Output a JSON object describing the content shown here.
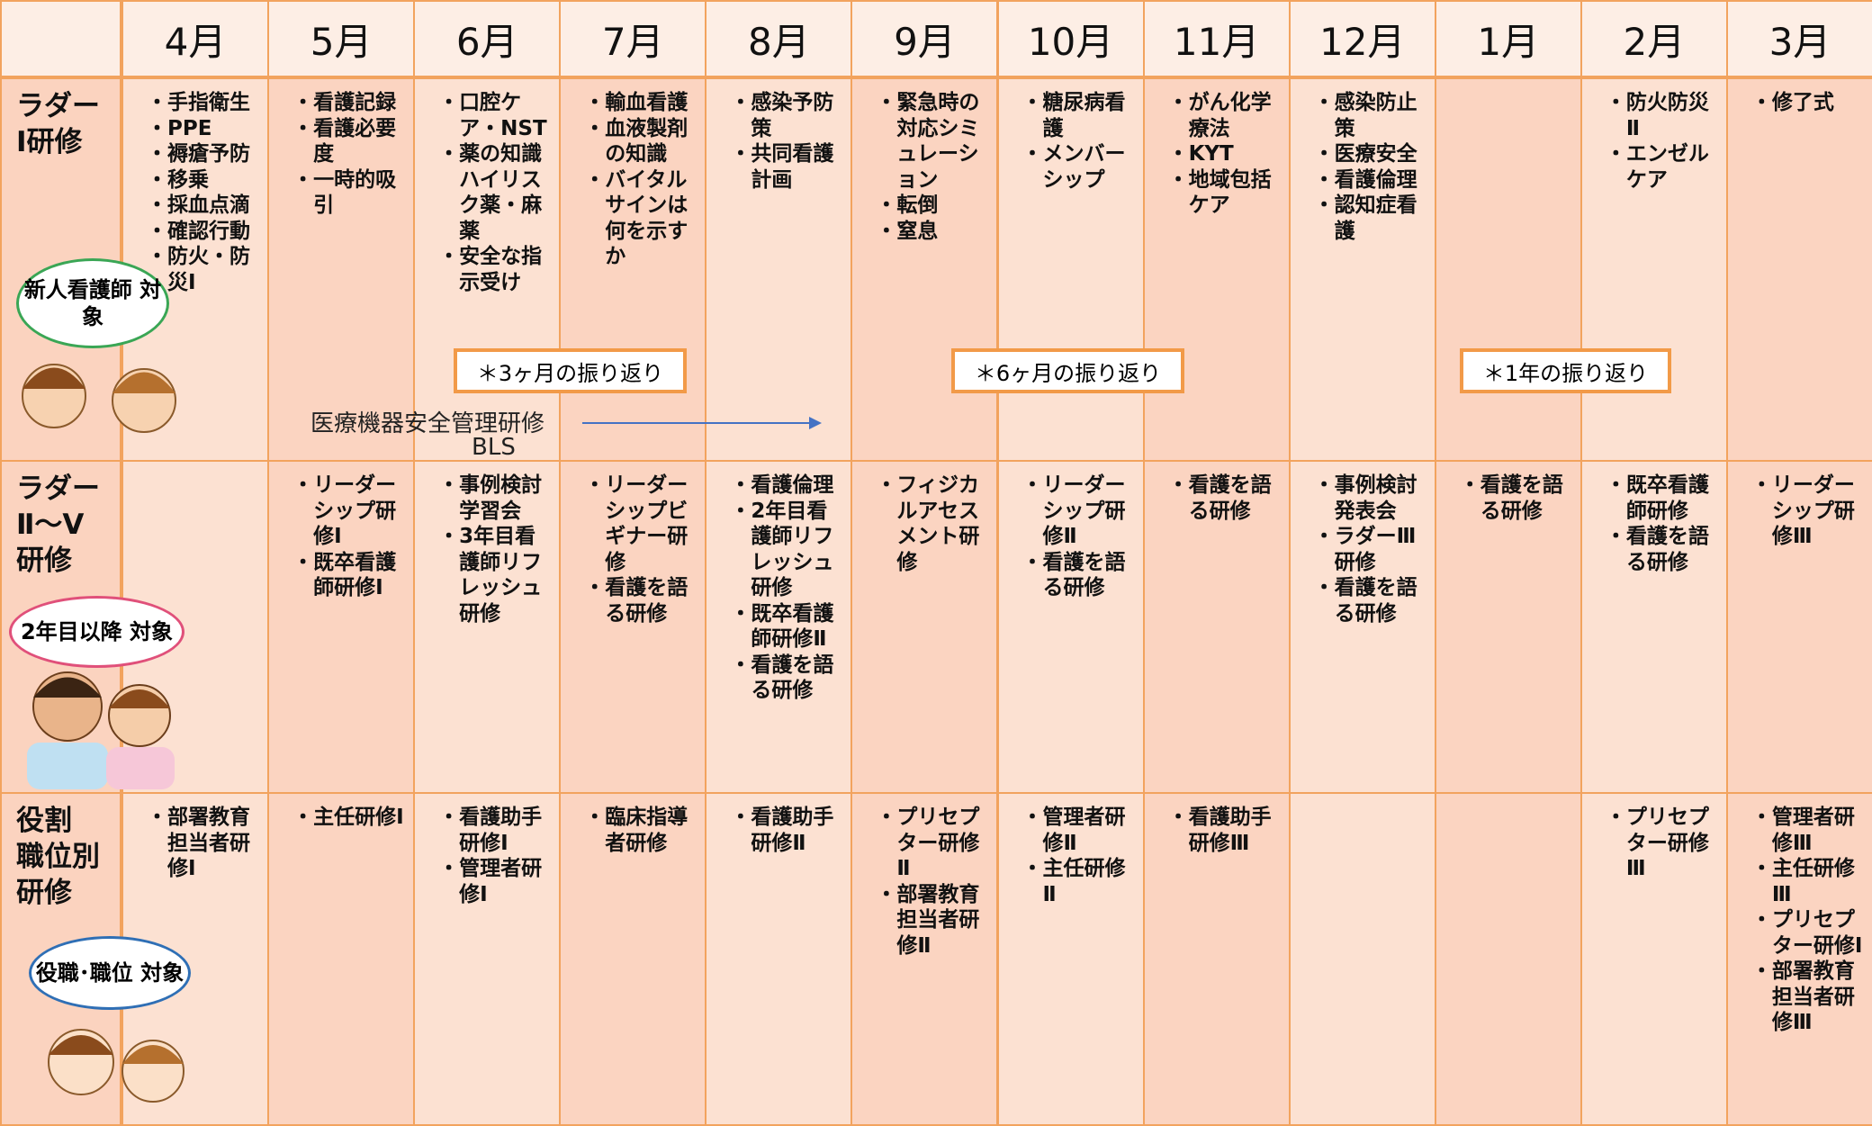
{
  "months": [
    "4月",
    "5月",
    "6月",
    "7月",
    "8月",
    "9月",
    "10月",
    "11月",
    "12月",
    "1月",
    "2月",
    "3月"
  ],
  "rows": [
    {
      "label": "ラダー Ⅰ研修",
      "audience": "新人看護師 対象",
      "cells": [
        [
          "・手指衛生",
          "・PPE",
          "・褥瘡予防",
          "・移乗",
          "・採血点滴",
          "・確認行動",
          "・防火・防災Ⅰ"
        ],
        [
          "・看護記録",
          "・看護必要度",
          "・一時的吸引"
        ],
        [
          "・口腔ケア・NST",
          "・薬の知識ハイリスク薬・麻薬",
          "・安全な指示受け"
        ],
        [
          "・輸血看護",
          "・血液製剤の知識",
          "・バイタルサインは何を示すか"
        ],
        [
          "・感染予防策",
          "・共同看護計画"
        ],
        [
          "・緊急時の対応シミュレーション",
          "・転倒",
          "・窒息"
        ],
        [
          "・糖尿病看護",
          "・メンバーシップ"
        ],
        [
          "・がん化学療法",
          "・KYT",
          "・地域包括ケア"
        ],
        [
          "・感染防止策",
          "・医療安全",
          "・看護倫理",
          "・認知症看護"
        ],
        [],
        [
          "・防火防災Ⅱ",
          "・エンゼルケア"
        ],
        [
          "・修了式"
        ]
      ]
    },
    {
      "label": "ラダー Ⅱ～Ⅴ 研修",
      "audience": "2年目以降 対象",
      "cells": [
        [],
        [
          "・リーダーシップ研修Ⅰ",
          "・既卒看護師研修Ⅰ"
        ],
        [
          "・事例検討学習会",
          "・3年目看護師リフレッシュ研修"
        ],
        [
          "・リーダーシップビギナー研修",
          "・看護を語る研修"
        ],
        [
          "・看護倫理",
          "・2年目看護師リフレッシュ研修",
          "・既卒看護師研修Ⅱ",
          "・看護を語る研修"
        ],
        [
          "・フィジカルアセスメント研修"
        ],
        [
          "・リーダーシップ研修Ⅱ",
          "・看護を語る研修"
        ],
        [
          "・看護を語る研修"
        ],
        [
          "・事例検討発表会",
          "・ラダーⅢ研修",
          "・看護を語る研修"
        ],
        [
          "・看護を語る研修"
        ],
        [
          "・既卒看護師研修",
          "・看護を語る研修"
        ],
        [
          "・リーダーシップ研修Ⅲ"
        ]
      ]
    },
    {
      "label": "役割 職位別 研修",
      "audience": "役職･職位 対象",
      "cells": [
        [
          "・部署教育担当者研修Ⅰ"
        ],
        [
          "・主任研修Ⅰ"
        ],
        [
          "・看護助手研修Ⅰ",
          "・管理者研修Ⅰ"
        ],
        [
          "・臨床指導者研修"
        ],
        [
          "・看護助手研修Ⅱ"
        ],
        [
          "・プリセプター研修Ⅱ",
          "・部署教育担当者研修Ⅱ"
        ],
        [
          "・管理者研修Ⅱ",
          "・主任研修Ⅱ"
        ],
        [
          "・看護助手研修Ⅲ"
        ],
        [],
        [],
        [
          "・プリセプター研修Ⅲ"
        ],
        [
          "・管理者研修Ⅲ",
          "・主任研修Ⅲ",
          "・プリセプター研修Ⅰ",
          "・部署教育担当者研修Ⅲ"
        ]
      ]
    }
  ],
  "reviews": [
    "＊3ヶ月の振り返り",
    "＊6ヶ月の振り返り",
    "＊1年の振り返り"
  ],
  "device_training": "医療機器安全管理研修",
  "bls": "BLS"
}
